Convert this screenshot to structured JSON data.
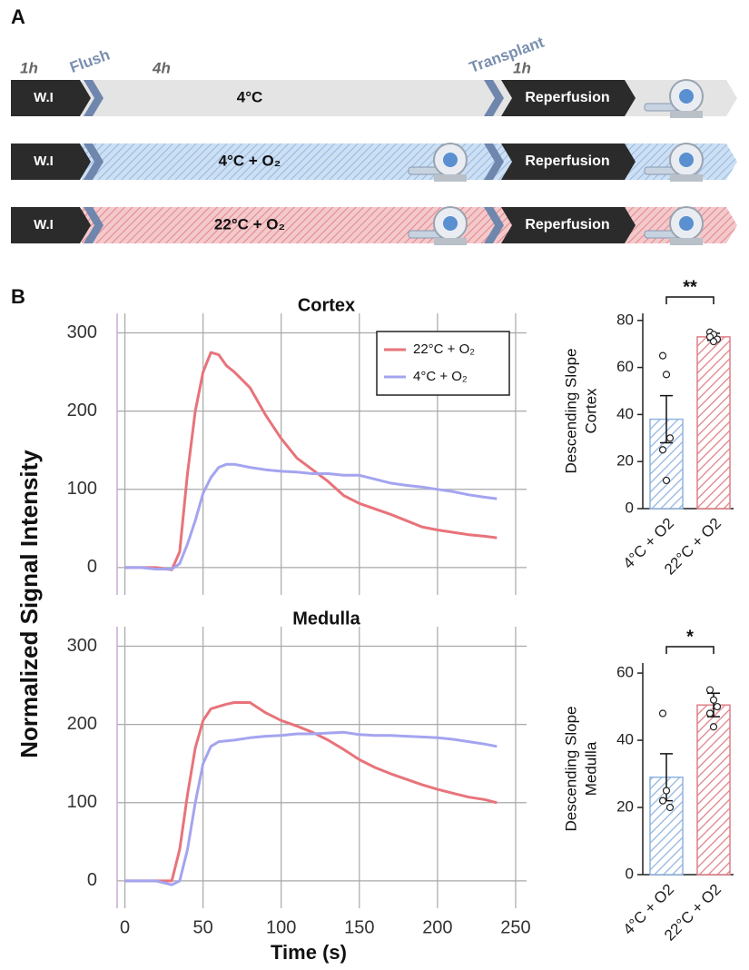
{
  "panel_a": {
    "label": "A",
    "timeline": [
      "1h",
      "Flush",
      "4h",
      "Transplant",
      "1h"
    ],
    "rows": [
      [
        "W.I",
        "4°C",
        "Reperfusion"
      ],
      [
        "W.I",
        "4°C + O₂",
        "Reperfusion"
      ],
      [
        "W.I",
        "22°C + O₂",
        "Reperfusion"
      ]
    ]
  },
  "panel_b": {
    "label": "B",
    "y_label": "Normalized Signal Intensity",
    "x_label": "Time (s)"
  },
  "chart_data": [
    {
      "type": "line",
      "title": "Cortex",
      "legend": "upper right",
      "x": [
        0,
        10,
        20,
        30,
        35,
        40,
        45,
        50,
        55,
        60,
        65,
        70,
        80,
        90,
        100,
        110,
        120,
        130,
        140,
        150,
        160,
        170,
        180,
        190,
        200,
        210,
        220,
        230,
        238
      ],
      "series": [
        {
          "name": "22°C + O₂",
          "color": "#e8737a",
          "values": [
            0,
            0,
            0,
            -3,
            20,
            120,
            200,
            250,
            275,
            272,
            258,
            250,
            230,
            195,
            165,
            140,
            125,
            110,
            92,
            82,
            75,
            68,
            60,
            52,
            48,
            45,
            42,
            40,
            38
          ]
        },
        {
          "name": "4°C + O₂",
          "color": "#a4a4f0",
          "values": [
            0,
            0,
            -2,
            -2,
            5,
            30,
            60,
            95,
            115,
            128,
            132,
            132,
            128,
            125,
            123,
            122,
            120,
            120,
            118,
            118,
            113,
            108,
            105,
            103,
            100,
            97,
            93,
            90,
            88
          ]
        }
      ],
      "xlim": [
        -5,
        257
      ],
      "xticks": [
        0,
        50,
        100,
        150,
        200,
        250
      ],
      "show_xtick_labels": false,
      "ylim": [
        -35,
        325
      ],
      "yticks": [
        0,
        100,
        200,
        300
      ],
      "grid": true
    },
    {
      "type": "bar",
      "ylabel": [
        "Descending Slope",
        "Cortex"
      ],
      "categories": [
        "4°C + O2",
        "22°C + O2"
      ],
      "values": [
        38,
        73
      ],
      "errors": [
        10,
        1.5
      ],
      "points": [
        [
          65,
          57,
          30,
          25,
          12
        ],
        [
          75,
          74,
          72,
          73,
          71
        ]
      ],
      "colors": [
        "#8fb4e0",
        "#e07f86"
      ],
      "significance": "**",
      "ylim": [
        0,
        83
      ],
      "yticks": [
        0,
        20,
        40,
        60,
        80
      ]
    },
    {
      "type": "line",
      "title": "Medulla",
      "x": [
        0,
        10,
        20,
        30,
        35,
        40,
        45,
        50,
        55,
        60,
        65,
        70,
        80,
        90,
        100,
        110,
        120,
        130,
        140,
        150,
        160,
        170,
        180,
        190,
        200,
        210,
        220,
        230,
        238
      ],
      "series": [
        {
          "color": "#e8737a",
          "values": [
            0,
            0,
            0,
            0,
            40,
            110,
            170,
            205,
            220,
            223,
            226,
            228,
            228,
            215,
            205,
            198,
            190,
            180,
            168,
            155,
            145,
            137,
            130,
            123,
            117,
            112,
            107,
            104,
            100
          ]
        },
        {
          "color": "#a4a4f0",
          "values": [
            0,
            0,
            0,
            -5,
            0,
            40,
            100,
            150,
            172,
            178,
            179,
            180,
            183,
            185,
            186,
            188,
            188,
            189,
            190,
            187,
            186,
            186,
            185,
            184,
            183,
            181,
            178,
            175,
            172
          ]
        }
      ],
      "xlim": [
        -5,
        257
      ],
      "xticks": [
        0,
        50,
        100,
        150,
        200,
        250
      ],
      "show_xtick_labels": true,
      "ylim": [
        -35,
        325
      ],
      "yticks": [
        0,
        100,
        200,
        300
      ],
      "grid": true
    },
    {
      "type": "bar",
      "ylabel": [
        "Descending Slope",
        "Medulla"
      ],
      "categories": [
        "4°C + O2",
        "22°C + O2"
      ],
      "values": [
        29,
        50.5
      ],
      "errors": [
        7,
        3.5
      ],
      "points": [
        [
          48,
          25,
          20,
          22
        ],
        [
          55,
          52,
          50,
          48,
          44
        ]
      ],
      "colors": [
        "#8fb4e0",
        "#e07f86"
      ],
      "significance": "*",
      "ylim": [
        0,
        63
      ],
      "yticks": [
        0,
        20,
        40,
        60
      ]
    }
  ]
}
